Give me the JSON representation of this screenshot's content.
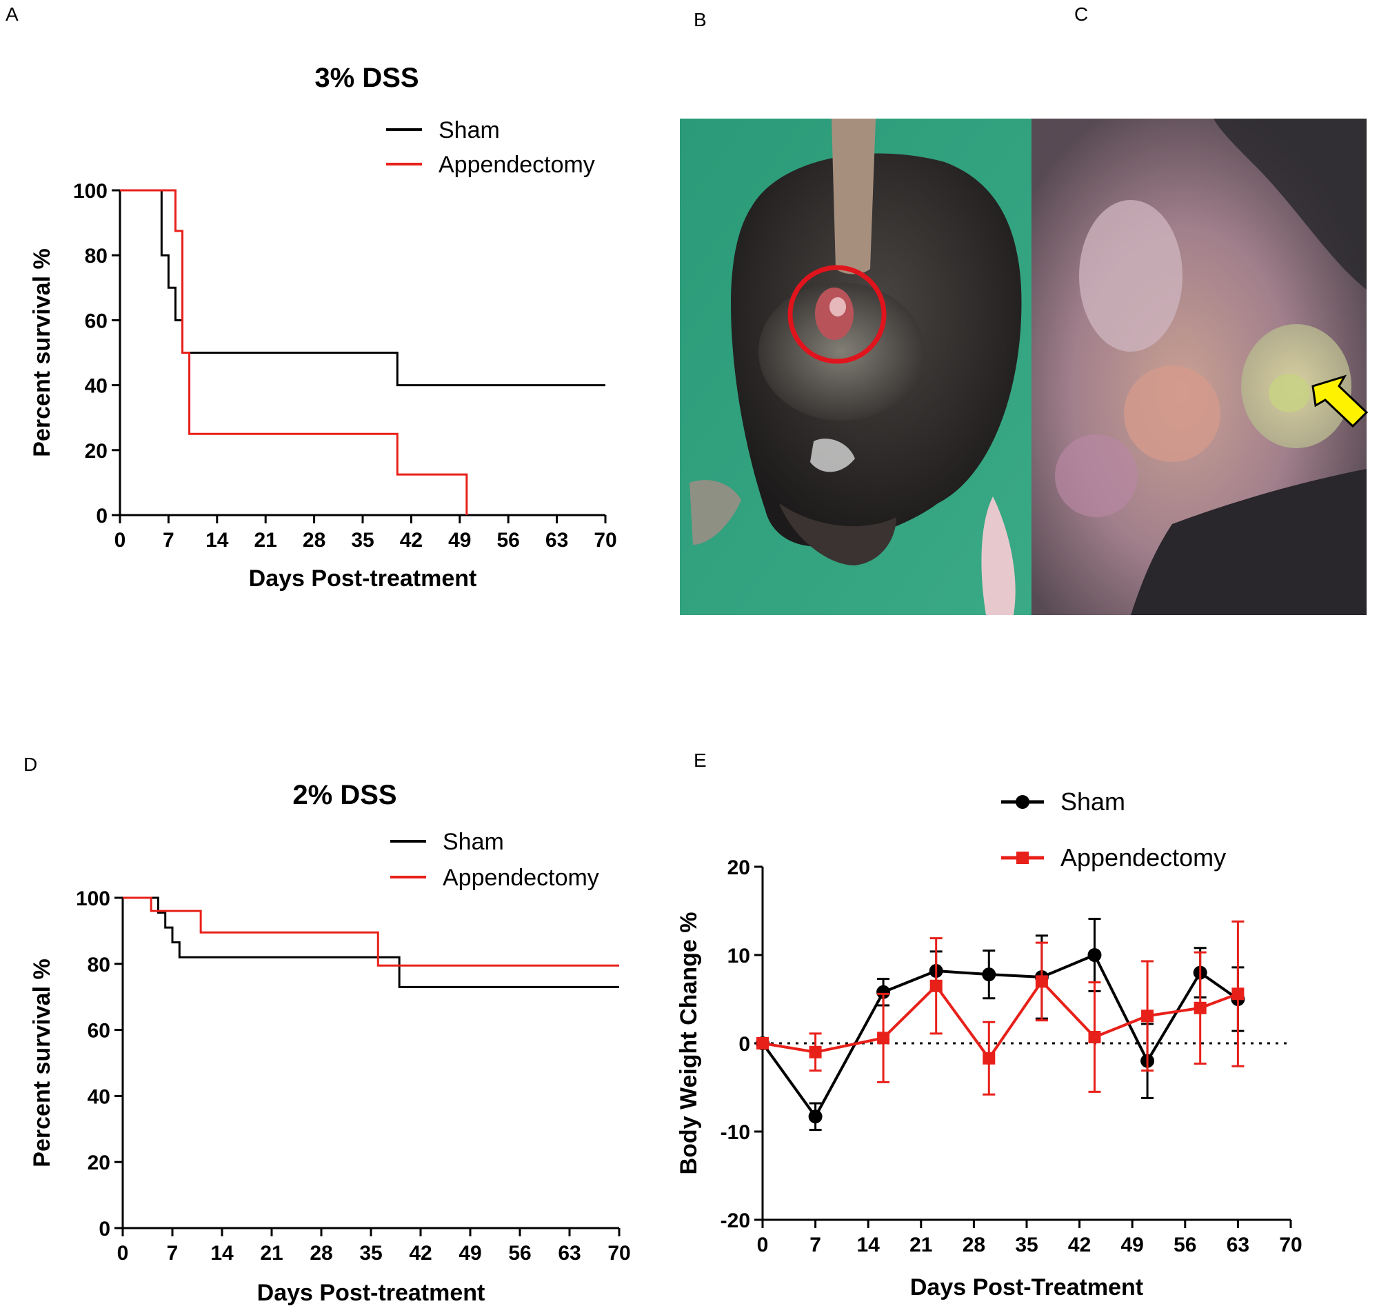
{
  "panels": {
    "A": "A",
    "B": "B",
    "C": "C",
    "D": "D",
    "E": "E"
  },
  "colors": {
    "sham": "#000000",
    "appendectomy": "#e8201a",
    "circle": "#e0141c",
    "arrow": "#fff200",
    "green_bg": "#2fa07a",
    "gray_bg": "#d9d6dd"
  },
  "photos": {
    "B": {
      "alt": "mouse rear view with circled anus"
    },
    "C": {
      "alt": "opened abdomen with arrow"
    }
  },
  "chart_data": [
    {
      "id": "A",
      "type": "line",
      "step": true,
      "title": "3% DSS",
      "xlabel": "Days Post-treatment",
      "ylabel": "Percent survival %",
      "xlim": [
        0,
        70
      ],
      "ylim": [
        0,
        100
      ],
      "xticks": [
        0,
        7,
        14,
        21,
        28,
        35,
        42,
        49,
        56,
        63,
        70
      ],
      "yticks": [
        0,
        20,
        40,
        60,
        80,
        100
      ],
      "legend_position": "top-right",
      "series": [
        {
          "name": "Sham",
          "color": "#000000",
          "x": [
            0,
            6,
            7,
            8,
            9,
            40,
            70
          ],
          "y": [
            100,
            80,
            70,
            60,
            50,
            40,
            40
          ]
        },
        {
          "name": "Appendectomy",
          "color": "#e8201a",
          "x": [
            0,
            8,
            9,
            10,
            40,
            50
          ],
          "y": [
            100,
            87.5,
            50,
            25,
            12.5,
            0
          ]
        }
      ]
    },
    {
      "id": "D",
      "type": "line",
      "step": true,
      "title": "2% DSS",
      "xlabel": "Days Post-treatment",
      "ylabel": "Percent survival %",
      "xlim": [
        0,
        70
      ],
      "ylim": [
        0,
        100
      ],
      "xticks": [
        0,
        7,
        14,
        21,
        28,
        35,
        42,
        49,
        56,
        63,
        70
      ],
      "yticks": [
        0,
        20,
        40,
        60,
        80,
        100
      ],
      "legend_position": "top-right",
      "series": [
        {
          "name": "Sham",
          "color": "#000000",
          "x": [
            0,
            5,
            6,
            7,
            8,
            39,
            70
          ],
          "y": [
            100,
            95.5,
            91,
            86.5,
            82,
            73,
            73
          ]
        },
        {
          "name": "Appendectomy",
          "color": "#e8201a",
          "x": [
            0,
            4,
            11,
            36,
            70
          ],
          "y": [
            100,
            96,
            89.5,
            79.5,
            79.5
          ]
        }
      ]
    },
    {
      "id": "E",
      "type": "line",
      "step": false,
      "title": "",
      "xlabel": "Days Post-Treatment",
      "ylabel": "Body Weight Change %",
      "xlim": [
        0,
        70
      ],
      "ylim": [
        -20,
        20
      ],
      "xticks": [
        0,
        7,
        14,
        21,
        28,
        35,
        42,
        49,
        56,
        63,
        70
      ],
      "yticks": [
        -20,
        -10,
        0,
        10,
        20
      ],
      "zero_line": true,
      "legend_position": "top-right",
      "series": [
        {
          "name": "Sham",
          "color": "#000000",
          "marker": "circle",
          "x": [
            0,
            7,
            16,
            23,
            30,
            37,
            44,
            51,
            58,
            63
          ],
          "y": [
            0,
            -8.3,
            5.8,
            8.2,
            7.8,
            7.5,
            10,
            -2,
            8,
            5
          ],
          "err": [
            0.3,
            1.5,
            1.5,
            2.2,
            2.7,
            4.7,
            4.1,
            4.2,
            2.8,
            3.6
          ]
        },
        {
          "name": "Appendectomy",
          "color": "#e8201a",
          "marker": "square",
          "x": [
            0,
            7,
            16,
            23,
            30,
            37,
            44,
            51,
            58,
            63
          ],
          "y": [
            0,
            -1,
            0.6,
            6.5,
            -1.7,
            7,
            0.7,
            3.1,
            4,
            5.6
          ],
          "err": [
            0.3,
            2.1,
            5,
            5.4,
            4.1,
            4.4,
            6.2,
            6.2,
            6.3,
            8.2
          ]
        }
      ]
    }
  ]
}
